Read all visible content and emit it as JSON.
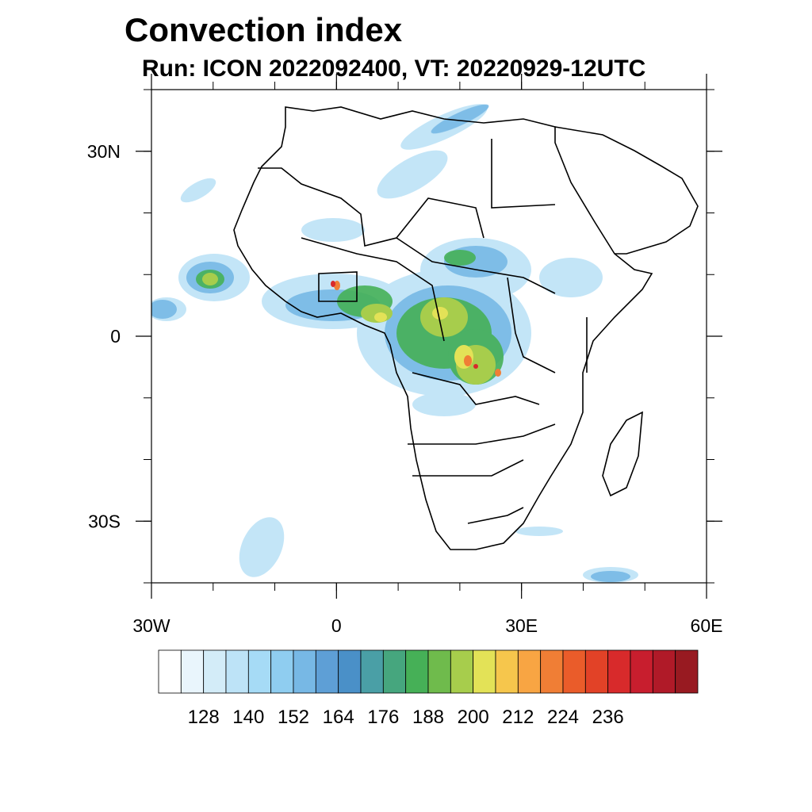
{
  "title": "Convection index",
  "subtitle": "Run: ICON 2022092400,  VT: 20220929-12UTC",
  "axes": {
    "lon_ticks": [
      {
        "value": -30,
        "label": "30W"
      },
      {
        "value": 0,
        "label": "0"
      },
      {
        "value": 30,
        "label": "30E"
      },
      {
        "value": 60,
        "label": "60E"
      }
    ],
    "lat_ticks": [
      {
        "value": 30,
        "label": "30N"
      },
      {
        "value": 0,
        "label": "0"
      },
      {
        "value": -30,
        "label": "30S"
      }
    ],
    "lon_range": [
      -30,
      60
    ],
    "lat_range": [
      -40,
      40
    ]
  },
  "colorbar": {
    "colors": [
      "#ffffff",
      "#e9f5fc",
      "#d3ecf8",
      "#bde3f7",
      "#a6dbf6",
      "#8fcdf0",
      "#77b8e5",
      "#5e9fd6",
      "#4a90c8",
      "#4a9fa6",
      "#46a67e",
      "#46b057",
      "#6fbb4c",
      "#a7cd4c",
      "#e3e257",
      "#f6c64c",
      "#f8a543",
      "#f07e35",
      "#ea5c2a",
      "#e24227",
      "#d82a2b",
      "#c81e2e",
      "#b01a28",
      "#981a21"
    ],
    "labels": [
      "128",
      "140",
      "152",
      "164",
      "176",
      "188",
      "200",
      "212",
      "224",
      "236"
    ],
    "label_positions": [
      2,
      4,
      6,
      8,
      10,
      12,
      14,
      16,
      18,
      20
    ]
  }
}
